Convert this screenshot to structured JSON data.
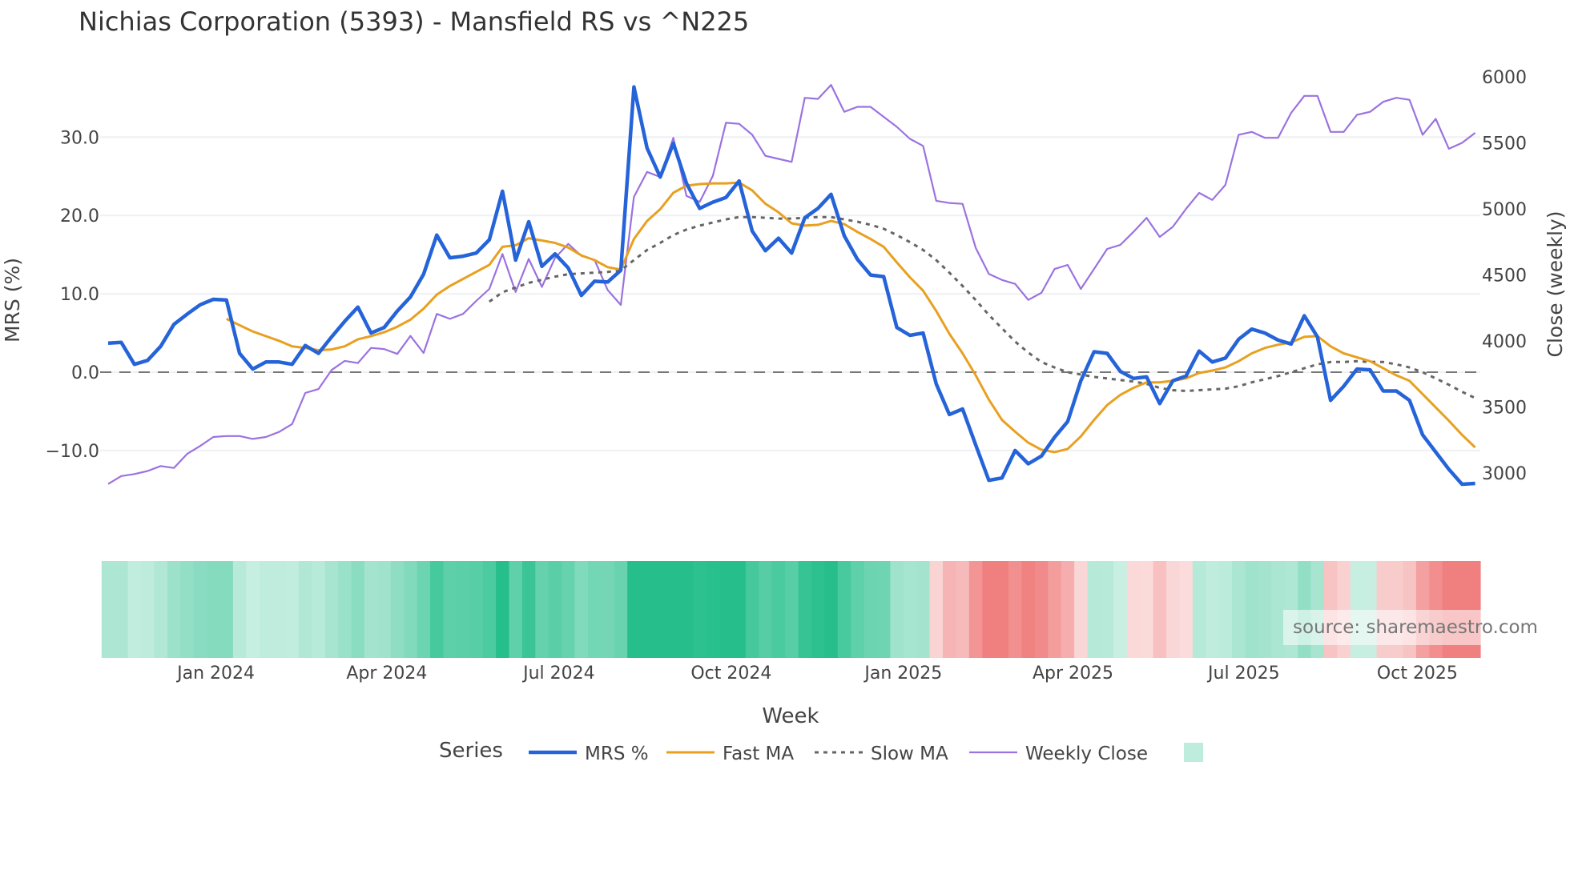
{
  "title": "Nichias Corporation (5393) - Mansfield RS vs ^N225",
  "source": "source: sharemaestro.com",
  "chart_data": {
    "type": "line",
    "title": "Nichias Corporation (5393) - Mansfield RS vs ^N225",
    "xlabel": "Week",
    "ylabel": "MRS (%)",
    "y2label": "Close (weekly)",
    "ylim": [
      -15.3,
      38.5
    ],
    "y2lim": [
      2850,
      6050
    ],
    "yticks": [
      "30.0",
      "20.0",
      "10.0",
      "0.0",
      "−10.0"
    ],
    "ytick_values": [
      30,
      20,
      10,
      0,
      -10
    ],
    "y2ticks": [
      "6000",
      "5500",
      "5000",
      "4500",
      "4000",
      "3500",
      "3000"
    ],
    "y2tick_values": [
      6000,
      5500,
      5000,
      4500,
      4000,
      3500,
      3000
    ],
    "xticks": [
      "Jan 2024",
      "Apr 2024",
      "Jul 2024",
      "Oct 2024",
      "Jan 2025",
      "Apr 2025",
      "Jul 2025",
      "Oct 2025"
    ],
    "xtick_weeks": [
      8.2,
      21.2,
      34.3,
      47.4,
      60.5,
      73.4,
      86.4,
      99.6
    ],
    "x_unit": "week index",
    "zero_line": 0,
    "grid": true,
    "legend": {
      "title": "Series",
      "placement": "bottom-center",
      "entries": [
        "MRS %",
        "Fast MA",
        "Slow MA",
        "Weekly Close"
      ]
    },
    "colors": {
      "mrs": "#2563d9",
      "fast": "#e8a020",
      "slow": "#666666",
      "close": "#9b72e0",
      "heat_pos": "#26bf8c",
      "heat_neg": "#f08080"
    },
    "series": [
      {
        "name": "MRS %",
        "start_week": 0,
        "values": [
          3.7,
          3.8,
          1.0,
          1.5,
          3.3,
          6.1,
          7.4,
          8.6,
          9.3,
          9.2,
          2.4,
          0.4,
          1.3,
          1.3,
          1.0,
          3.4,
          2.4,
          4.5,
          6.5,
          8.3,
          5.0,
          5.7,
          7.8,
          9.6,
          12.5,
          17.5,
          14.6,
          14.8,
          15.2,
          16.9,
          23.1,
          14.3,
          19.2,
          13.5,
          15.1,
          13.3,
          9.8,
          11.6,
          11.5,
          13.0,
          36.4,
          28.6,
          24.9,
          29.2,
          24.1,
          20.9,
          21.7,
          22.3,
          24.4,
          18.0,
          15.5,
          17.1,
          15.2,
          19.7,
          20.9,
          22.7,
          17.4,
          14.4,
          12.4,
          12.2,
          5.7,
          4.7,
          5.0,
          -1.5,
          -5.4,
          -4.7,
          -9.3,
          -13.8,
          -13.5,
          -10.0,
          -11.7,
          -10.7,
          -8.3,
          -6.3,
          -1.1,
          2.6,
          2.4,
          0.1,
          -0.8,
          -0.6,
          -4.0,
          -1.1,
          -0.5,
          2.7,
          1.3,
          1.8,
          4.2,
          5.5,
          5.0,
          4.1,
          3.6,
          7.2,
          4.5,
          -3.6,
          -1.8,
          0.4,
          0.3,
          -2.4,
          -2.4,
          -3.6,
          -8.0,
          -10.2,
          -12.4,
          -14.3,
          -14.2
        ]
      },
      {
        "name": "Fast MA",
        "start_week": 9,
        "values": [
          6.8,
          6.0,
          5.2,
          4.6,
          4.0,
          3.3,
          3.1,
          2.8,
          2.9,
          3.3,
          4.2,
          4.6,
          5.1,
          5.8,
          6.7,
          8.1,
          9.9,
          11.0,
          11.9,
          12.8,
          13.7,
          16.0,
          16.2,
          17.1,
          16.8,
          16.5,
          15.9,
          14.9,
          14.3,
          13.4,
          13.1,
          17.0,
          19.3,
          20.8,
          22.9,
          23.8,
          24.0,
          24.1,
          24.1,
          24.2,
          23.2,
          21.5,
          20.4,
          19.0,
          18.7,
          18.8,
          19.3,
          18.9,
          17.9,
          17.0,
          16.0,
          14.0,
          12.1,
          10.4,
          7.8,
          4.9,
          2.4,
          -0.4,
          -3.5,
          -6.1,
          -7.6,
          -9.0,
          -9.9,
          -10.2,
          -9.8,
          -8.2,
          -6.1,
          -4.2,
          -2.9,
          -2.0,
          -1.3,
          -1.3,
          -1.1,
          -0.8,
          -0.1,
          0.2,
          0.6,
          1.4,
          2.4,
          3.1,
          3.5,
          3.8,
          4.5,
          4.6,
          3.3,
          2.4,
          1.9,
          1.4,
          0.5,
          -0.4,
          -1.1,
          -2.8,
          -4.5,
          -6.2,
          -8.0,
          -9.6
        ]
      },
      {
        "name": "Slow MA",
        "start_week": 29,
        "values": [
          9.0,
          10.2,
          10.8,
          11.4,
          11.8,
          12.2,
          12.5,
          12.6,
          12.7,
          12.8,
          13.0,
          14.3,
          15.6,
          16.5,
          17.5,
          18.2,
          18.7,
          19.1,
          19.5,
          19.8,
          19.8,
          19.7,
          19.6,
          19.6,
          19.7,
          19.8,
          19.8,
          19.5,
          19.2,
          18.8,
          18.3,
          17.5,
          16.6,
          15.6,
          14.3,
          12.7,
          11.0,
          9.2,
          7.3,
          5.6,
          3.9,
          2.5,
          1.3,
          0.6,
          0.0,
          -0.3,
          -0.6,
          -0.8,
          -1.0,
          -1.2,
          -1.5,
          -2.0,
          -2.3,
          -2.4,
          -2.3,
          -2.2,
          -2.1,
          -1.8,
          -1.3,
          -0.9,
          -0.5,
          0.0,
          0.5,
          1.0,
          1.3,
          1.3,
          1.4,
          1.3,
          1.3,
          1.0,
          0.6,
          0.0,
          -0.8,
          -1.6,
          -2.5,
          -3.3
        ]
      },
      {
        "name": "Weekly Close",
        "axis": "right",
        "start_week": 0,
        "values": [
          2917,
          2977,
          2992,
          3015,
          3053,
          3038,
          3144,
          3205,
          3273,
          3280,
          3280,
          3258,
          3273,
          3311,
          3371,
          3606,
          3636,
          3780,
          3849,
          3833,
          3947,
          3939,
          3902,
          4038,
          3909,
          4205,
          4167,
          4205,
          4303,
          4394,
          4659,
          4371,
          4621,
          4409,
          4629,
          4735,
          4644,
          4614,
          4386,
          4273,
          5091,
          5280,
          5242,
          5538,
          5099,
          5053,
          5250,
          5652,
          5644,
          5561,
          5402,
          5379,
          5356,
          5841,
          5833,
          5939,
          5735,
          5773,
          5773,
          5697,
          5621,
          5530,
          5477,
          5061,
          5045,
          5038,
          4705,
          4508,
          4462,
          4432,
          4311,
          4364,
          4545,
          4576,
          4394,
          4545,
          4697,
          4727,
          4826,
          4932,
          4788,
          4864,
          5000,
          5121,
          5068,
          5182,
          5561,
          5583,
          5538,
          5538,
          5727,
          5856,
          5856,
          5583,
          5583,
          5712,
          5735,
          5811,
          5841,
          5826,
          5561,
          5682,
          5455,
          5500,
          5576
        ]
      }
    ]
  }
}
